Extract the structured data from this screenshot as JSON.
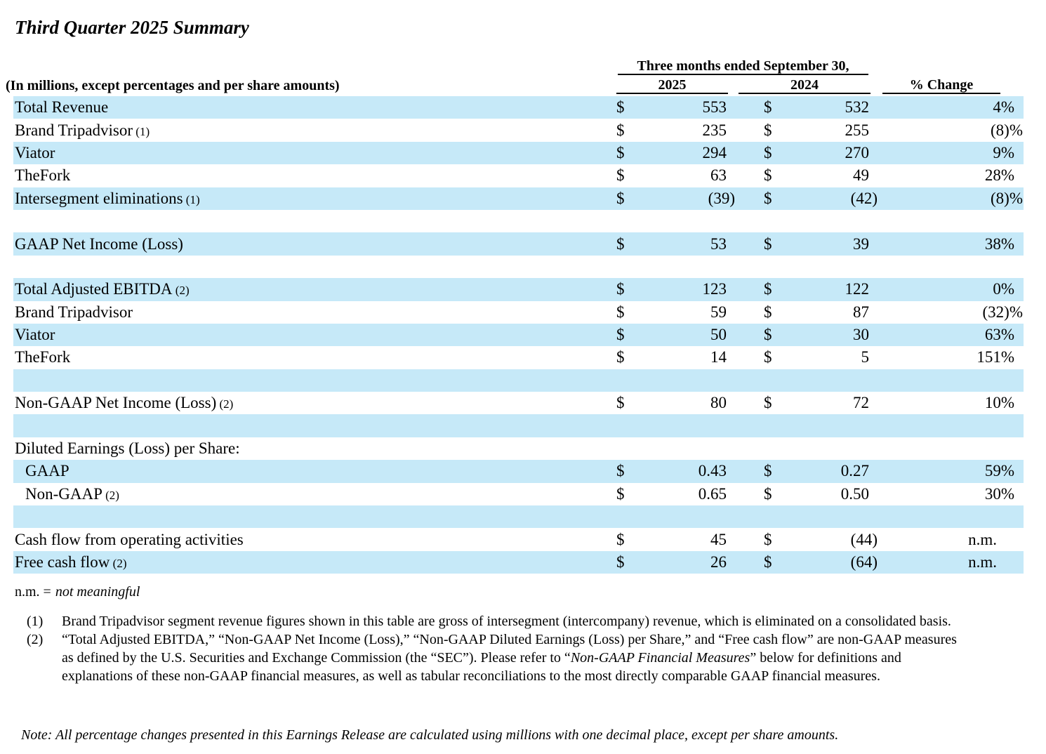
{
  "title": "Third Quarter 2025 Summary",
  "table": {
    "caption": "(In millions, except percentages and per share amounts)",
    "period_header": "Three months ended September 30,",
    "col_2025": "2025",
    "col_2024": "2024",
    "col_change": "% Change",
    "currency_symbol": "$",
    "rows": [
      {
        "label": "Total Revenue",
        "v2025": "553",
        "v2024": "532",
        "change": "4%"
      },
      {
        "label": "Brand Tripadvisor",
        "note": "(1)",
        "v2025": "235",
        "v2024": "255",
        "change": "(8)%"
      },
      {
        "label": "Viator",
        "v2025": "294",
        "v2024": "270",
        "change": "9%"
      },
      {
        "label": "TheFork",
        "v2025": "63",
        "v2024": "49",
        "change": "28%"
      },
      {
        "label": "Intersegment eliminations",
        "note": "(1)",
        "v2025": "(39)",
        "v2024": "(42)",
        "change": "(8)%"
      },
      {
        "blank": true
      },
      {
        "label": "GAAP Net Income (Loss)",
        "v2025": "53",
        "v2024": "39",
        "change": "38%"
      },
      {
        "blank": true
      },
      {
        "label": "Total Adjusted EBITDA",
        "note": "(2)",
        "v2025": "123",
        "v2024": "122",
        "change": "0%"
      },
      {
        "label": "Brand Tripadvisor",
        "v2025": "59",
        "v2024": "87",
        "change": "(32)%"
      },
      {
        "label": "Viator",
        "v2025": "50",
        "v2024": "30",
        "change": "63%"
      },
      {
        "label": "TheFork",
        "v2025": "14",
        "v2024": "5",
        "change": "151%"
      },
      {
        "blank": true
      },
      {
        "label": "Non-GAAP Net Income (Loss)",
        "note": "(2)",
        "v2025": "80",
        "v2024": "72",
        "change": "10%"
      },
      {
        "blank": true
      },
      {
        "label": "Diluted Earnings (Loss) per Share:",
        "header_only": true
      },
      {
        "label": "GAAP",
        "indent": true,
        "v2025": "0.43",
        "v2024": "0.27",
        "change": "59%"
      },
      {
        "label": "Non-GAAP",
        "note": "(2)",
        "indent": true,
        "v2025": "0.65",
        "v2024": "0.50",
        "change": "30%"
      },
      {
        "blank": true
      },
      {
        "label": "Cash flow from operating activities",
        "v2025": "45",
        "v2024": "(44)",
        "change": "n.m."
      },
      {
        "label": "Free cash flow",
        "note": "(2)",
        "v2025": "26",
        "v2024": "(64)",
        "change": "n.m."
      }
    ]
  },
  "legend": {
    "abbr": "n.m. =",
    "meaning": "not meaningful"
  },
  "footnotes": [
    {
      "marker": "(1)",
      "text": "Brand Tripadvisor segment revenue figures shown in this table are gross of intersegment (intercompany) revenue, which is eliminated on a consolidated basis."
    },
    {
      "marker": "(2)",
      "text_before": "“Total Adjusted EBITDA,” “Non-GAAP Net Income (Loss),” “Non-GAAP Diluted Earnings (Loss) per Share,” and “Free cash flow” are non-GAAP measures as defined by the U.S. Securities and Exchange Commission (the “SEC”). Please refer to “",
      "italic": "Non-GAAP Financial Measures",
      "text_after": "” below for definitions and explanations of these non-GAAP financial measures, as well as tabular reconciliations to the most directly comparable GAAP financial measures."
    }
  ],
  "note": "Note: All percentage changes presented in this Earnings Release are calculated using millions with one decimal place, except per share amounts.",
  "colors": {
    "row_highlight": "#c6e9f8",
    "text": "#000000"
  }
}
